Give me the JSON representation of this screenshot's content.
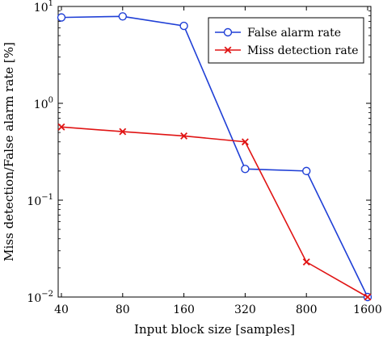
{
  "chart_data": {
    "type": "line",
    "xlabel": "Input block size [samples]",
    "ylabel": "Miss detection/False alarm rate [%]",
    "categories": [
      "40",
      "80",
      "160",
      "320",
      "800",
      "1600"
    ],
    "y_scale": "log",
    "ylim": [
      0.01,
      10
    ],
    "y_ticks": [
      {
        "value": 0.01,
        "base": "10",
        "exp": "−2"
      },
      {
        "value": 0.1,
        "base": "10",
        "exp": "−1"
      },
      {
        "value": 1,
        "base": "10",
        "exp": "0"
      },
      {
        "value": 10,
        "base": "10",
        "exp": "1"
      }
    ],
    "grid": false,
    "legend_position": "top-right",
    "series": [
      {
        "name": "False alarm rate",
        "color": "#1f3fd6",
        "marker": "circle",
        "values": [
          7.7,
          7.9,
          6.3,
          0.21,
          0.2,
          0.01
        ]
      },
      {
        "name": "Miss detection rate",
        "color": "#e01414",
        "marker": "x",
        "values": [
          0.57,
          0.51,
          0.46,
          0.4,
          0.023,
          0.01
        ]
      }
    ]
  }
}
